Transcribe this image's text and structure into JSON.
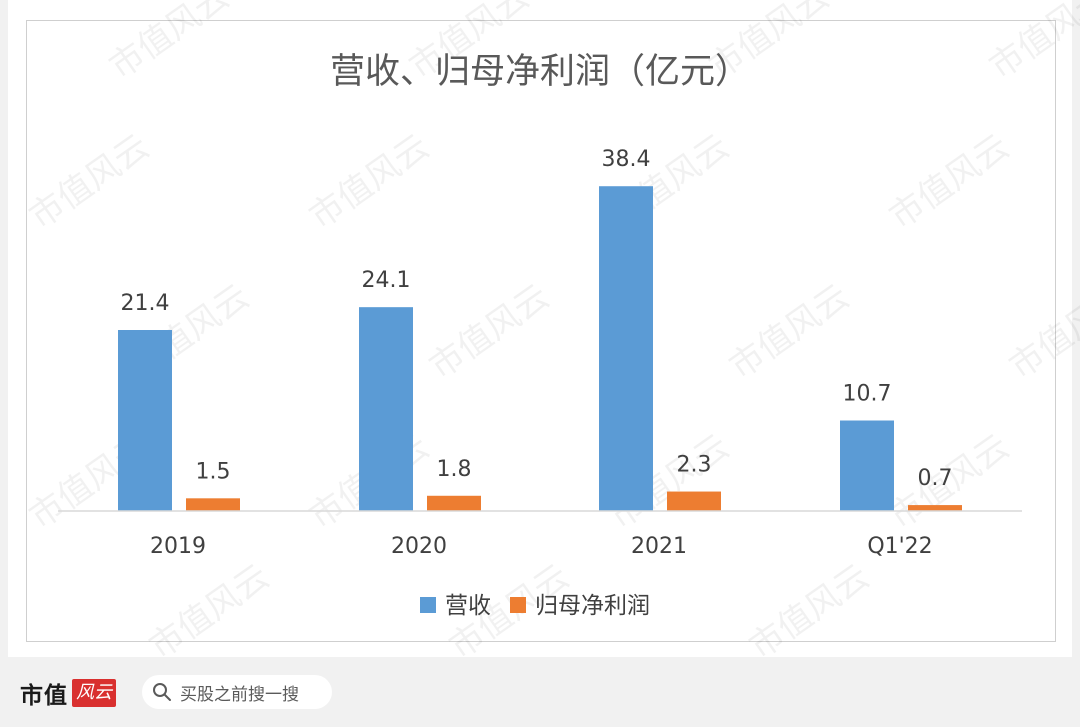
{
  "chart_data": {
    "type": "bar",
    "title": "营收、归母净利润（亿元）",
    "categories": [
      "2019",
      "2020",
      "2021",
      "Q1'22"
    ],
    "series": [
      {
        "name": "营收",
        "values": [
          21.4,
          24.1,
          38.4,
          10.7
        ],
        "color": "#5b9bd5"
      },
      {
        "name": "归母净利润",
        "values": [
          1.5,
          1.8,
          2.3,
          0.7
        ],
        "color": "#ed7d31"
      }
    ],
    "value_labels": [
      [
        "21.4",
        "24.1",
        "38.4",
        "10.7"
      ],
      [
        "1.5",
        "1.8",
        "2.3",
        "0.7"
      ]
    ],
    "ylim": [
      0,
      45
    ],
    "grid": false,
    "legend_position": "bottom"
  },
  "watermark_text": "市值风云",
  "footer": {
    "brand_name": "市值",
    "brand_badge": "风云",
    "search_text": "买股之前搜一搜"
  }
}
